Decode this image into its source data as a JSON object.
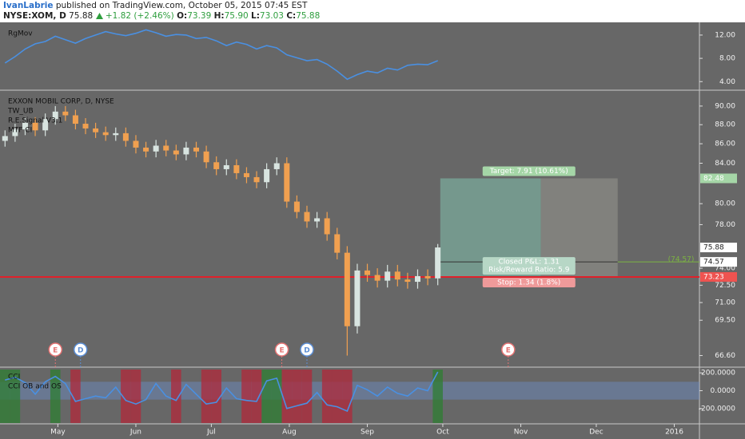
{
  "header": {
    "author": "IvanLabrie",
    "published": "published on TradingView.com, October 05, 2015 07:45 EST",
    "quote": {
      "symbol": "NYSE:XOM, D",
      "last": "75.88",
      "change": "+1.82 (+2.46%)",
      "fields": [
        {
          "label": "O:",
          "value": "73.39"
        },
        {
          "label": "H:",
          "value": "75.90"
        },
        {
          "label": "L:",
          "value": "73.03"
        },
        {
          "label": "C:",
          "value": "75.88"
        }
      ]
    }
  },
  "chart_data": [
    {
      "type": "line",
      "title": "RgMov",
      "color": "#4a90e2",
      "xlim": [
        98,
        376
      ],
      "x": [
        100,
        104,
        108,
        112,
        116,
        120,
        124,
        128,
        132,
        136,
        140,
        144,
        148,
        152,
        156,
        160,
        164,
        168,
        172,
        176,
        180,
        184,
        188,
        192,
        196,
        200,
        204,
        208,
        212,
        216,
        220,
        224,
        228,
        232,
        236,
        240,
        244,
        248,
        252,
        256,
        260,
        264,
        268,
        272
      ],
      "values": [
        7.2,
        8.3,
        9.6,
        10.5,
        10.9,
        11.8,
        11.2,
        10.6,
        11.4,
        12.0,
        12.6,
        12.2,
        11.9,
        12.3,
        12.9,
        12.4,
        11.8,
        12.1,
        12.0,
        11.4,
        11.6,
        11.0,
        10.2,
        10.8,
        10.4,
        9.6,
        10.2,
        9.8,
        8.6,
        8.1,
        7.6,
        7.8,
        7.0,
        5.8,
        4.4,
        5.2,
        5.8,
        5.5,
        6.3,
        6.0,
        6.8,
        7.0,
        6.9,
        7.6
      ],
      "ylim": [
        2.8,
        13.5
      ],
      "yticks": [
        {
          "value": 4,
          "label": "4.00"
        },
        {
          "value": 8,
          "label": "8.00"
        },
        {
          "value": 12,
          "label": "12.00"
        }
      ]
    },
    {
      "type": "candlestick",
      "title": "EXXON MOBIL CORP, D, NYSE",
      "indicators": [
        "TW_UB",
        "R.E.Signal V3.1",
        "MTF CI"
      ],
      "up_color": "#d8e4e0",
      "down_color": "#f0a050",
      "log_scale": true,
      "xlim": [
        98,
        376
      ],
      "x": [
        100,
        104,
        108,
        112,
        116,
        120,
        124,
        128,
        132,
        136,
        140,
        144,
        148,
        152,
        156,
        160,
        164,
        168,
        172,
        176,
        180,
        184,
        188,
        192,
        196,
        200,
        204,
        208,
        212,
        216,
        220,
        224,
        228,
        232,
        236,
        240,
        244,
        248,
        252,
        256,
        260,
        264,
        268,
        272
      ],
      "open": [
        86.3,
        86.8,
        87.5,
        88.2,
        87.4,
        88.6,
        89.4,
        89.0,
        88.1,
        87.6,
        87.2,
        86.9,
        87.1,
        86.3,
        85.6,
        85.2,
        85.8,
        85.3,
        84.9,
        85.6,
        85.2,
        84.1,
        83.4,
        83.8,
        83.0,
        82.6,
        82.1,
        83.4,
        84.0,
        80.2,
        79.2,
        78.3,
        78.6,
        77.1,
        75.4,
        69.0,
        73.8,
        73.4,
        72.9,
        73.7,
        73.0,
        72.8,
        73.3,
        73.1
      ],
      "high": [
        87.4,
        88.1,
        88.8,
        88.8,
        89.2,
        90.0,
        90.0,
        89.6,
        88.7,
        88.2,
        87.8,
        87.7,
        87.7,
        86.9,
        86.2,
        86.4,
        86.4,
        85.9,
        86.2,
        86.2,
        85.8,
        84.7,
        84.4,
        84.4,
        83.6,
        83.2,
        84.0,
        84.6,
        84.6,
        80.8,
        79.8,
        79.2,
        79.2,
        77.7,
        76.0,
        74.4,
        74.4,
        74.0,
        74.3,
        74.3,
        73.6,
        73.9,
        73.9,
        76.2
      ],
      "low": [
        85.7,
        86.2,
        86.9,
        86.8,
        86.8,
        88.0,
        88.4,
        87.5,
        87.0,
        86.6,
        86.3,
        86.3,
        85.7,
        85.0,
        84.6,
        84.6,
        84.7,
        84.3,
        84.3,
        84.6,
        83.5,
        82.8,
        82.8,
        82.4,
        82.0,
        81.5,
        81.5,
        82.8,
        79.6,
        78.6,
        77.7,
        77.7,
        76.5,
        74.8,
        66.6,
        68.4,
        72.8,
        72.3,
        72.3,
        72.4,
        72.2,
        72.2,
        72.5,
        72.5
      ],
      "close": [
        86.8,
        87.5,
        88.2,
        87.4,
        88.6,
        89.4,
        89.0,
        88.1,
        87.6,
        87.2,
        86.9,
        87.1,
        86.3,
        85.6,
        85.2,
        85.8,
        85.3,
        84.9,
        85.6,
        85.2,
        84.1,
        83.4,
        83.8,
        83.0,
        82.6,
        82.1,
        83.4,
        84.0,
        80.2,
        79.2,
        78.3,
        78.6,
        77.1,
        75.4,
        69.0,
        73.8,
        73.4,
        72.9,
        73.7,
        73.0,
        72.8,
        73.3,
        73.1,
        75.88
      ],
      "ylim": [
        65.8,
        91.3
      ],
      "yticks": [
        {
          "value": 66.6,
          "label": "66.60"
        },
        {
          "value": 69.5,
          "label": "69.50"
        },
        {
          "value": 71,
          "label": "71.00"
        },
        {
          "value": 72.5,
          "label": "72.50"
        },
        {
          "value": 74,
          "label": "74.00"
        },
        {
          "value": 78,
          "label": "78.00"
        },
        {
          "value": 80,
          "label": "80.00"
        },
        {
          "value": 84,
          "label": "84.00"
        },
        {
          "value": 86,
          "label": "86.00"
        },
        {
          "value": 88,
          "label": "88.00"
        },
        {
          "value": 90,
          "label": "90.00"
        }
      ],
      "price_labels": [
        {
          "value": 82.48,
          "color": "#a5d6a7"
        },
        {
          "value": 75.88,
          "color": "#ffffff"
        },
        {
          "value": 74.57,
          "color": "#ffffff"
        },
        {
          "value": 73.23,
          "color": "#ef5350"
        }
      ],
      "position": {
        "start": 273,
        "split": 313,
        "end": 343.5,
        "entry": 74.57,
        "target": 82.48,
        "stop": 73.23,
        "target_label": "Target: 7.91 (10.61%)",
        "pnl_label": "Closed P&L: 1.31",
        "ratio_label": "Risk/Reward Ratio: 5.9",
        "stop_label": "Stop: 1.34 (1.8%)",
        "entry_label": "(74.57)"
      },
      "events": [
        {
          "label": "E",
          "x": 120,
          "color": "#e57373"
        },
        {
          "label": "D",
          "x": 130,
          "color": "#5c8fd6"
        },
        {
          "label": "E",
          "x": 210,
          "color": "#e57373"
        },
        {
          "label": "D",
          "x": 220,
          "color": "#5c8fd6"
        },
        {
          "label": "E",
          "x": 300,
          "color": "#e57373"
        }
      ]
    },
    {
      "type": "line",
      "title": "CCI",
      "band_label": "CCI OB and OS",
      "band": [
        -100,
        100
      ],
      "band_color": "#6d8fc8",
      "above_color": "#2e7d32",
      "below_color": "#b0283a",
      "color": "#4a90e2",
      "xlim": [
        98,
        376
      ],
      "x": [
        100,
        104,
        108,
        112,
        116,
        120,
        124,
        128,
        132,
        136,
        140,
        144,
        148,
        152,
        156,
        160,
        164,
        168,
        172,
        176,
        180,
        184,
        188,
        192,
        196,
        200,
        204,
        208,
        212,
        216,
        220,
        224,
        228,
        232,
        236,
        240,
        244,
        248,
        252,
        256,
        260,
        264,
        268,
        272
      ],
      "values": [
        120,
        150,
        90,
        -40,
        100,
        160,
        80,
        -120,
        -90,
        -60,
        -80,
        40,
        -110,
        -150,
        -100,
        80,
        -60,
        -110,
        70,
        -40,
        -150,
        -130,
        30,
        -90,
        -110,
        -120,
        110,
        140,
        -200,
        -170,
        -140,
        -20,
        -160,
        -180,
        -230,
        60,
        10,
        -60,
        40,
        -30,
        -60,
        30,
        0,
        210
      ],
      "ylim": [
        -363,
        237
      ],
      "yticks": [
        {
          "value": -200,
          "label": "-200.0000"
        },
        {
          "value": 0,
          "label": "0.0000"
        },
        {
          "value": 200,
          "label": "200.0000"
        }
      ],
      "xticks": [
        {
          "value": 121,
          "label": "May"
        },
        {
          "value": 152,
          "label": "Jun"
        },
        {
          "value": 182,
          "label": "Jul"
        },
        {
          "value": 213,
          "label": "Aug"
        },
        {
          "value": 244,
          "label": "Sep"
        },
        {
          "value": 274,
          "label": "Oct"
        },
        {
          "value": 305,
          "label": "Nov"
        },
        {
          "value": 335,
          "label": "Dec"
        },
        {
          "value": 366,
          "label": "2016"
        }
      ]
    }
  ]
}
